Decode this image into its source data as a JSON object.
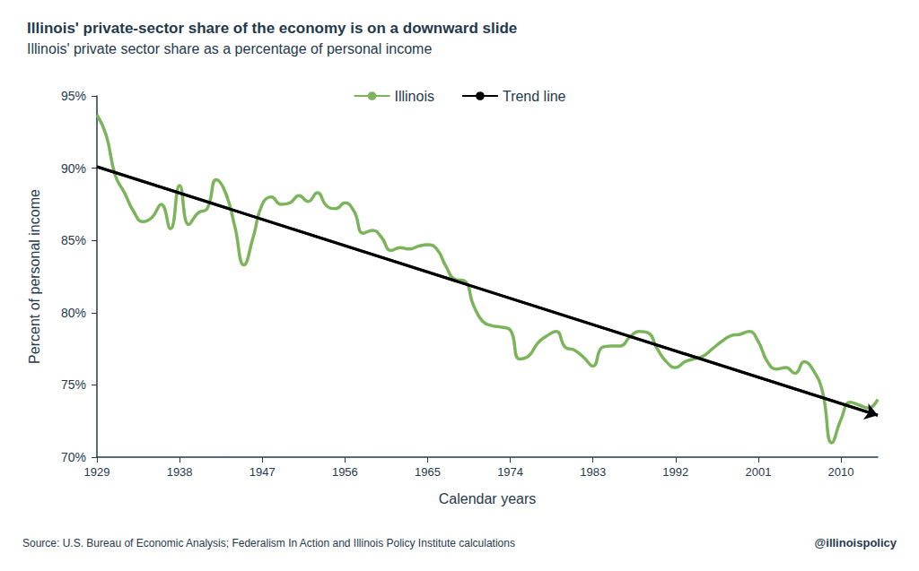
{
  "chart_data": {
    "type": "line",
    "title": "Illinois' private-sector share of the economy is on a downward slide",
    "subtitle": "Illinois' private sector share as a percentage of personal income",
    "x_label": "Calendar years",
    "y_label": "Percent of personal income",
    "source": "Source: U.S. Bureau of Economic Analysis; Federalism In Action and Illinois Policy Institute calculations",
    "credit": "@illinoispolicy",
    "xlim": [
      1929,
      2014
    ],
    "xticks": [
      1929,
      1938,
      1947,
      1956,
      1965,
      1974,
      1983,
      1992,
      2001,
      2010
    ],
    "ylim": [
      70,
      95
    ],
    "yticks": [
      {
        "value": 70,
        "label": "70%"
      },
      {
        "value": 75,
        "label": "75%"
      },
      {
        "value": 80,
        "label": "80%"
      },
      {
        "value": 85,
        "label": "85%"
      },
      {
        "value": 90,
        "label": "90%"
      },
      {
        "value": 95,
        "label": "95%"
      }
    ],
    "grid": false,
    "legend": "top",
    "series": [
      {
        "name": "Illinois",
        "color": "#7cb45c",
        "marker": "none",
        "line_style": "solid",
        "x": [
          1929,
          1930,
          1931,
          1932,
          1933,
          1934,
          1935,
          1936,
          1937,
          1938,
          1939,
          1940,
          1941,
          1942,
          1943,
          1944,
          1945,
          1946,
          1947,
          1948,
          1949,
          1950,
          1951,
          1952,
          1953,
          1954,
          1955,
          1956,
          1957,
          1958,
          1959,
          1960,
          1961,
          1962,
          1963,
          1964,
          1965,
          1966,
          1967,
          1968,
          1969,
          1970,
          1971,
          1972,
          1973,
          1974,
          1975,
          1976,
          1977,
          1978,
          1979,
          1980,
          1981,
          1982,
          1983,
          1984,
          1985,
          1986,
          1987,
          1988,
          1989,
          1990,
          1991,
          1992,
          1993,
          1994,
          1995,
          1996,
          1997,
          1998,
          1999,
          2000,
          2001,
          2002,
          2003,
          2004,
          2005,
          2006,
          2007,
          2008,
          2009,
          2010,
          2011,
          2012,
          2013,
          2014
        ],
        "values": [
          93.7,
          92.3,
          89.5,
          88.3,
          87.0,
          86.3,
          86.6,
          87.5,
          85.8,
          88.8,
          86.1,
          86.9,
          87.2,
          89.2,
          88.3,
          86.0,
          83.3,
          85.2,
          87.5,
          88.0,
          87.5,
          87.6,
          88.1,
          87.7,
          88.3,
          87.4,
          87.2,
          87.6,
          87.0,
          85.5,
          85.7,
          85.2,
          84.3,
          84.5,
          84.4,
          84.6,
          84.7,
          84.4,
          83.2,
          82.3,
          82.2,
          80.5,
          79.4,
          79.1,
          79.0,
          78.8,
          76.8,
          77.0,
          77.9,
          78.4,
          78.7,
          77.6,
          77.4,
          76.9,
          76.3,
          77.6,
          77.7,
          77.7,
          78.3,
          78.7,
          78.6,
          77.5,
          76.6,
          76.2,
          76.6,
          76.8,
          77.0,
          77.5,
          78.0,
          78.4,
          78.5,
          78.7,
          78.0,
          76.6,
          76.1,
          76.2,
          75.8,
          76.6,
          76.0,
          74.5,
          71.0,
          72.6,
          73.8,
          73.6,
          73.4,
          74.0
        ]
      },
      {
        "name": "Trend line",
        "color": "#000000",
        "marker": "arrow",
        "line_style": "solid",
        "x": [
          1929,
          2014
        ],
        "values": [
          90.1,
          72.9
        ]
      }
    ]
  }
}
